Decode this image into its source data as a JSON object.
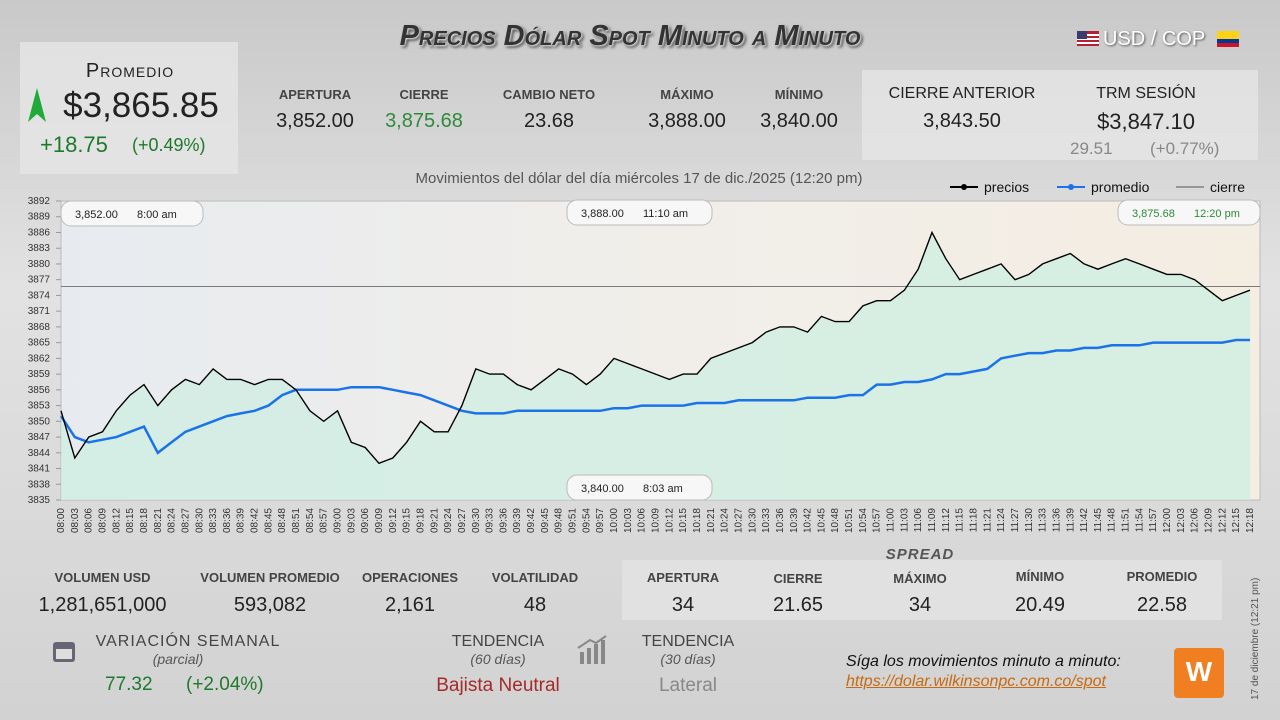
{
  "header": {
    "title": "Precios Dólar Spot Minuto a Minuto",
    "pair": "USD / COP"
  },
  "summary": {
    "label": "Promedio",
    "value": "$3,865.85",
    "change": "+18.75",
    "change_pct": "(+0.49%)"
  },
  "stats": [
    {
      "label": "APERTURA",
      "value": "3,852.00"
    },
    {
      "label": "CIERRE",
      "value": "3,875.68"
    },
    {
      "label": "CAMBIO NETO",
      "value": "23.68"
    },
    {
      "label": "MÁXIMO",
      "value": "3,888.00"
    },
    {
      "label": "MÍNIMO",
      "value": "3,840.00"
    }
  ],
  "previous": {
    "label": "CIERRE ANTERIOR",
    "value": "3,843.50"
  },
  "trm": {
    "label": "TRM SESIÓN",
    "value": "$3,847.10",
    "change": "29.51",
    "change_pct": "(+0.77%)"
  },
  "chart_data": {
    "type": "line",
    "title": "Movimientos del dólar del día miércoles 17 de dic./2025 (12:20 pm)",
    "categories": [
      "08:00",
      "08:03",
      "08:06",
      "08:09",
      "08:12",
      "08:15",
      "08:18",
      "08:21",
      "08:24",
      "08:27",
      "08:30",
      "08:33",
      "08:36",
      "08:39",
      "08:42",
      "08:45",
      "08:48",
      "08:51",
      "08:54",
      "08:57",
      "09:00",
      "09:03",
      "09:06",
      "09:09",
      "09:12",
      "09:15",
      "09:18",
      "09:21",
      "09:24",
      "09:27",
      "09:30",
      "09:33",
      "09:36",
      "09:39",
      "09:42",
      "09:45",
      "09:48",
      "09:51",
      "09:54",
      "09:57",
      "10:00",
      "10:03",
      "10:06",
      "10:09",
      "10:12",
      "10:15",
      "10:18",
      "10:21",
      "10:24",
      "10:27",
      "10:30",
      "10:33",
      "10:36",
      "10:39",
      "10:42",
      "10:45",
      "10:48",
      "10:51",
      "10:54",
      "10:57",
      "11:00",
      "11:03",
      "11:06",
      "11:09",
      "11:12",
      "11:15",
      "11:18",
      "11:21",
      "11:24",
      "11:27",
      "11:30",
      "11:33",
      "11:36",
      "11:39",
      "11:42",
      "11:45",
      "11:48",
      "11:51",
      "11:54",
      "11:57",
      "12:00",
      "12:03",
      "12:06",
      "12:09",
      "12:12",
      "12:15",
      "12:18"
    ],
    "series": [
      {
        "name": "precios",
        "color": "#000000",
        "values": [
          3852,
          3843,
          3847,
          3848,
          3852,
          3855,
          3857,
          3853,
          3856,
          3858,
          3857,
          3860,
          3858,
          3858,
          3857,
          3858,
          3858,
          3856,
          3852,
          3850,
          3852,
          3846,
          3845,
          3842,
          3843,
          3846,
          3850,
          3848,
          3848,
          3853,
          3860,
          3859,
          3859,
          3857,
          3856,
          3858,
          3860,
          3859,
          3857,
          3859,
          3862,
          3861,
          3860,
          3859,
          3858,
          3859,
          3859,
          3862,
          3863,
          3864,
          3865,
          3867,
          3868,
          3868,
          3867,
          3870,
          3869,
          3869,
          3872,
          3873,
          3873,
          3875,
          3879,
          3886,
          3881,
          3877,
          3878,
          3879,
          3880,
          3877,
          3878,
          3880,
          3881,
          3882,
          3880,
          3879,
          3880,
          3881,
          3880,
          3879,
          3878,
          3878,
          3877,
          3875,
          3873,
          3874,
          3875
        ]
      },
      {
        "name": "promedio",
        "color": "#1a73e8",
        "values": [
          3851,
          3847,
          3846,
          3846.5,
          3847,
          3848,
          3849,
          3844,
          3846,
          3848,
          3849,
          3850,
          3851,
          3851.5,
          3852,
          3853,
          3855,
          3856,
          3856,
          3856,
          3856,
          3856.5,
          3856.5,
          3856.5,
          3856,
          3855.5,
          3855,
          3854,
          3853,
          3852,
          3851.5,
          3851.5,
          3851.5,
          3852,
          3852,
          3852,
          3852,
          3852,
          3852,
          3852,
          3852.5,
          3852.5,
          3853,
          3853,
          3853,
          3853,
          3853.5,
          3853.5,
          3853.5,
          3854,
          3854,
          3854,
          3854,
          3854,
          3854.5,
          3854.5,
          3854.5,
          3855,
          3855,
          3857,
          3857,
          3857.5,
          3857.5,
          3858,
          3859,
          3859,
          3859.5,
          3860,
          3862,
          3862.5,
          3863,
          3863,
          3863.5,
          3863.5,
          3864,
          3864,
          3864.5,
          3864.5,
          3864.5,
          3865,
          3865,
          3865,
          3865,
          3865,
          3865,
          3865.5,
          3865.5
        ]
      },
      {
        "name": "cierre",
        "color": "#555555",
        "value": 3875.68
      }
    ],
    "ylim": [
      3835,
      3892
    ],
    "yticks": [
      3835,
      3838,
      3841,
      3844,
      3847,
      3850,
      3853,
      3856,
      3859,
      3862,
      3865,
      3868,
      3871,
      3874,
      3877,
      3880,
      3883,
      3886,
      3889,
      3892
    ],
    "annotations": [
      {
        "price": "3,852.00",
        "time": "8:00 am"
      },
      {
        "price": "3,888.00",
        "time": "11:10 am"
      },
      {
        "price": "3,875.68",
        "time": "12:20 pm"
      },
      {
        "price": "3,840.00",
        "time": "8:03 am"
      }
    ],
    "legend": "top-right"
  },
  "volume": [
    {
      "label": "VOLUMEN USD",
      "value": "1,281,651,000"
    },
    {
      "label": "VOLUMEN PROMEDIO",
      "value": "593,082"
    },
    {
      "label": "OPERACIONES",
      "value": "2,161"
    },
    {
      "label": "VOLATILIDAD",
      "value": "48"
    }
  ],
  "spread": {
    "title": "SPREAD",
    "items": [
      {
        "label": "APERTURA",
        "value": "34"
      },
      {
        "label": "CIERRE",
        "value": "21.65"
      },
      {
        "label": "MÁXIMO",
        "value": "34"
      },
      {
        "label": "MÍNIMO",
        "value": "20.49"
      },
      {
        "label": "PROMEDIO",
        "value": "22.58"
      }
    ]
  },
  "weekly": {
    "label": "VARIACIÓN SEMANAL",
    "sub": "(parcial)",
    "value": "77.32",
    "pct": "(+2.04%)"
  },
  "trend60": {
    "label": "TENDENCIA",
    "sub": "(60 días)",
    "value": "Bajista Neutral"
  },
  "trend30": {
    "label": "TENDENCIA",
    "sub": "(30 días)",
    "value": "Lateral"
  },
  "footer": {
    "text": "Síga los movimientos minuto a minuto:",
    "link": "https://dolar.wilkinsonpc.com.co/spot",
    "stamp": "17 de diciembre (12:21 pm)"
  }
}
